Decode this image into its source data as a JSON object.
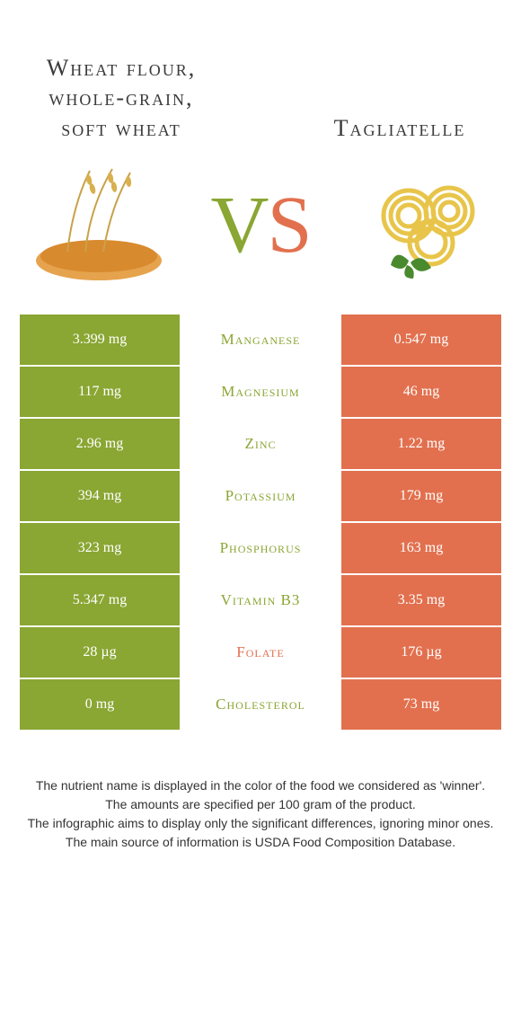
{
  "colors": {
    "left": "#8aa633",
    "right": "#e2704e",
    "text": "#333333",
    "bg": "#ffffff"
  },
  "foods": {
    "left": {
      "name": "Wheat flour, whole-grain, soft wheat"
    },
    "right": {
      "name": "Tagliatelle"
    }
  },
  "vs": {
    "v": "V",
    "s": "S"
  },
  "nutrients": [
    {
      "name": "Manganese",
      "left": "3.399 mg",
      "right": "0.547 mg",
      "winner": "left"
    },
    {
      "name": "Magnesium",
      "left": "117 mg",
      "right": "46 mg",
      "winner": "left"
    },
    {
      "name": "Zinc",
      "left": "2.96 mg",
      "right": "1.22 mg",
      "winner": "left"
    },
    {
      "name": "Potassium",
      "left": "394 mg",
      "right": "179 mg",
      "winner": "left"
    },
    {
      "name": "Phosphorus",
      "left": "323 mg",
      "right": "163 mg",
      "winner": "left"
    },
    {
      "name": "Vitamin B3",
      "left": "5.347 mg",
      "right": "3.35 mg",
      "winner": "left"
    },
    {
      "name": "Folate",
      "left": "28 µg",
      "right": "176 µg",
      "winner": "right"
    },
    {
      "name": "Cholesterol",
      "left": "0 mg",
      "right": "73 mg",
      "winner": "left"
    }
  ],
  "footer": {
    "line1": "The nutrient name is displayed in the color of the food we considered as 'winner'.",
    "line2": "The amounts are specified per 100 gram of the product.",
    "line3": "The infographic aims to display only the significant differences, ignoring minor ones.",
    "line4": "The main source of information is USDA Food Composition Database."
  }
}
